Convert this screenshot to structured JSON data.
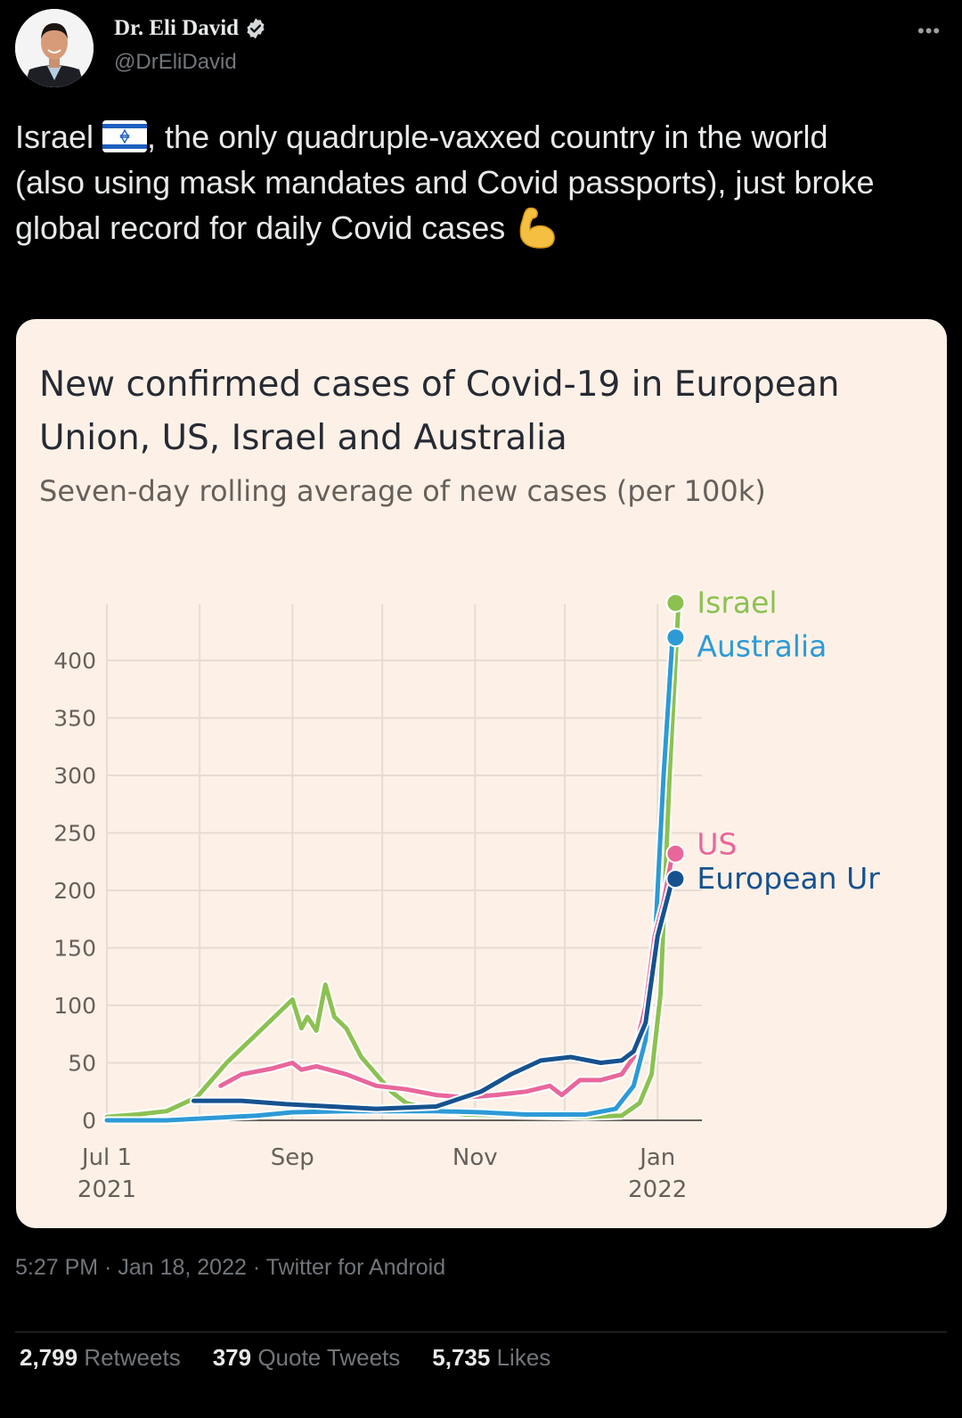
{
  "tweet": {
    "author_name": "Dr. Eli David",
    "handle": "@DrEliDavid",
    "verified": true,
    "more_icon": "more-icon",
    "text_parts": {
      "before_flag": "Israel ",
      "flag_emoji": "🇮🇱",
      "after_flag": ", the only quadruple-vaxxed country in the world (also using mask mandates and Covid passports), just broke global record for daily Covid cases ",
      "end_emoji": "💪"
    },
    "timestamp": "5:27 PM · Jan 18, 2022 · Twitter for Android",
    "stats": [
      {
        "count": "2,799",
        "label": "Retweets"
      },
      {
        "count": "379",
        "label": "Quote Tweets"
      },
      {
        "count": "5,735",
        "label": "Likes"
      }
    ]
  },
  "chart_data": {
    "type": "line",
    "title": "New confirmed cases of Covid-19 in European Union, US, Israel and Australia",
    "title_lines": [
      "New confirmed cases of Covid-19 in European",
      "Union, US, Israel and Australia"
    ],
    "subtitle": "Seven-day rolling average of new cases (per 100k)",
    "xlabel": "",
    "ylabel": "",
    "ylim": [
      0,
      450
    ],
    "yticks": [
      0,
      50,
      100,
      150,
      200,
      250,
      300,
      350,
      400
    ],
    "xticks": [
      {
        "day": 0,
        "label1": "Jul 1",
        "label2": "2021"
      },
      {
        "day": 62,
        "label1": "Sep",
        "label2": ""
      },
      {
        "day": 123,
        "label1": "Nov",
        "label2": ""
      },
      {
        "day": 184,
        "label1": "Jan",
        "label2": "2022"
      }
    ],
    "x_unit": "days since 2021-07-01",
    "grid": true,
    "legend": "right-end labels",
    "background": "#fdf1e7",
    "series": [
      {
        "name": "Israel",
        "label": "Israel",
        "color": "#8cc152",
        "points": [
          [
            0,
            3
          ],
          [
            10,
            5
          ],
          [
            20,
            8
          ],
          [
            30,
            20
          ],
          [
            40,
            50
          ],
          [
            50,
            75
          ],
          [
            58,
            95
          ],
          [
            62,
            105
          ],
          [
            65,
            80
          ],
          [
            67,
            90
          ],
          [
            70,
            78
          ],
          [
            73,
            118
          ],
          [
            76,
            90
          ],
          [
            80,
            80
          ],
          [
            85,
            55
          ],
          [
            90,
            40
          ],
          [
            95,
            25
          ],
          [
            100,
            15
          ],
          [
            110,
            8
          ],
          [
            120,
            5
          ],
          [
            140,
            4
          ],
          [
            160,
            3
          ],
          [
            172,
            4
          ],
          [
            178,
            15
          ],
          [
            182,
            40
          ],
          [
            185,
            110
          ],
          [
            188,
            300
          ],
          [
            191,
            450
          ]
        ]
      },
      {
        "name": "Australia",
        "label": "Australia",
        "color": "#2d9ad6",
        "points": [
          [
            0,
            0
          ],
          [
            20,
            0
          ],
          [
            35,
            2
          ],
          [
            50,
            4
          ],
          [
            62,
            7
          ],
          [
            80,
            8
          ],
          [
            95,
            8
          ],
          [
            110,
            8
          ],
          [
            125,
            7
          ],
          [
            140,
            5
          ],
          [
            160,
            5
          ],
          [
            170,
            10
          ],
          [
            176,
            30
          ],
          [
            180,
            70
          ],
          [
            183,
            150
          ],
          [
            186,
            300
          ],
          [
            189,
            420
          ]
        ]
      },
      {
        "name": "US",
        "label": "US",
        "color": "#e8679b",
        "points": [
          [
            38,
            30
          ],
          [
            45,
            40
          ],
          [
            55,
            45
          ],
          [
            62,
            50
          ],
          [
            65,
            44
          ],
          [
            70,
            47
          ],
          [
            80,
            40
          ],
          [
            90,
            30
          ],
          [
            100,
            27
          ],
          [
            110,
            22
          ],
          [
            120,
            20
          ],
          [
            130,
            22
          ],
          [
            140,
            25
          ],
          [
            148,
            30
          ],
          [
            152,
            22
          ],
          [
            158,
            35
          ],
          [
            165,
            35
          ],
          [
            172,
            40
          ],
          [
            176,
            55
          ],
          [
            180,
            100
          ],
          [
            183,
            160
          ],
          [
            186,
            190
          ],
          [
            189,
            232
          ]
        ]
      },
      {
        "name": "European Union",
        "label": "European Ur",
        "color": "#17528f",
        "points": [
          [
            29,
            17
          ],
          [
            45,
            17
          ],
          [
            60,
            14
          ],
          [
            75,
            12
          ],
          [
            90,
            10
          ],
          [
            110,
            12
          ],
          [
            125,
            25
          ],
          [
            135,
            40
          ],
          [
            145,
            52
          ],
          [
            155,
            55
          ],
          [
            165,
            50
          ],
          [
            172,
            52
          ],
          [
            176,
            60
          ],
          [
            180,
            85
          ],
          [
            184,
            160
          ],
          [
            189,
            210
          ]
        ]
      }
    ]
  }
}
